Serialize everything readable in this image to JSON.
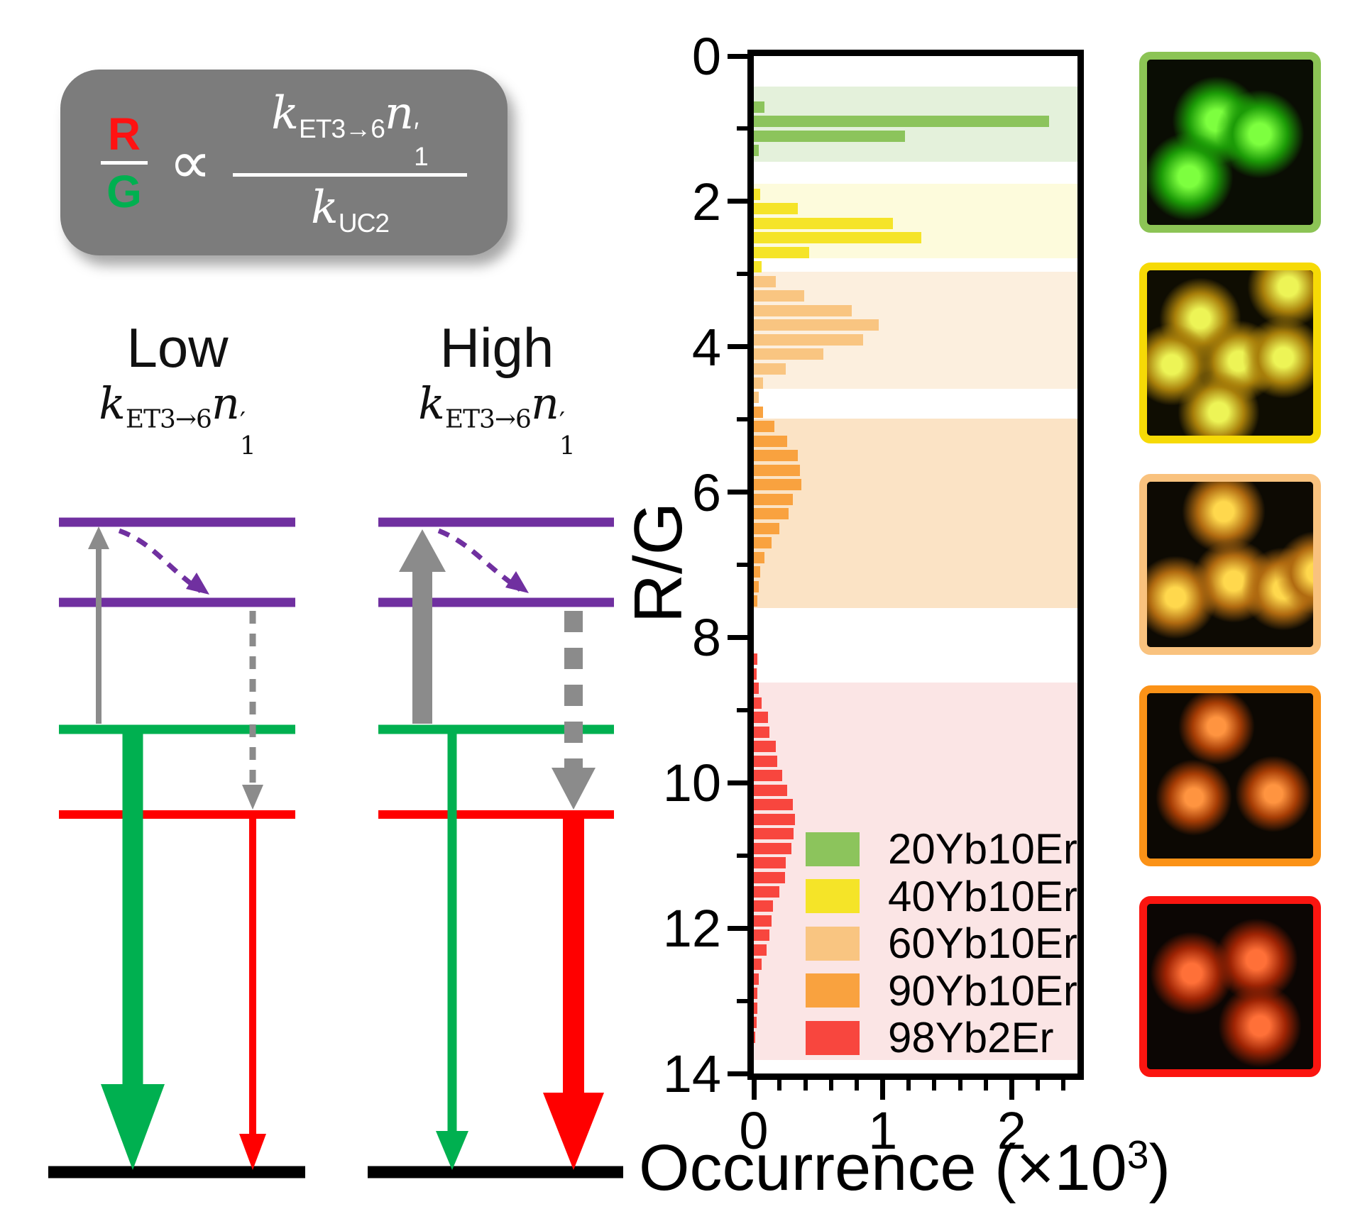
{
  "figure": {
    "formula_box": {
      "numerator": "R",
      "denominator": "G",
      "relation": "∝",
      "rate_k": "k",
      "rate_k_sub": "ET3→6",
      "rate_n": "n",
      "rate_n_prime": "′",
      "rate_n_sub": "1",
      "uc_k": "k",
      "uc_k_sub": "UC2",
      "bg_color": "#7C7C7C",
      "r_color": "#FF1212",
      "g_color": "#00B050"
    },
    "diagrams": {
      "low": {
        "title": "Low"
      },
      "high": {
        "title": "High"
      },
      "rate_label": {
        "k": "k",
        "k_sub": "ET3→6",
        "n": "n",
        "prime": "′",
        "n_sub": "1"
      },
      "level_colors": {
        "excited_purple": "#7030A0",
        "green_level": "#00B050",
        "red_level": "#FF0000",
        "ground": "#000000",
        "pump_gray": "#8B8B8B"
      }
    }
  },
  "chart_data": {
    "type": "bar",
    "orientation": "horizontal",
    "title": "",
    "ylabel": "R/G",
    "xlabel_prefix": "Occurrence (×10",
    "xlabel_sup": "3",
    "xlabel_suffix": ")",
    "xlim": [
      0,
      2.51
    ],
    "ylim": [
      0,
      14
    ],
    "y_inverted": true,
    "x_ticks": [
      0,
      1,
      2
    ],
    "x_minor_ticks": [
      0.2,
      0.4,
      0.6,
      0.8,
      1.2,
      1.4,
      1.6,
      1.8,
      2.2,
      2.4
    ],
    "y_ticks": [
      0,
      2,
      4,
      6,
      8,
      10,
      12,
      14
    ],
    "y_minor_ticks": [
      1,
      3,
      5,
      7,
      9,
      11,
      13
    ],
    "grid": false,
    "bin_width": 0.2,
    "legend_position": "inside-bottom-right",
    "series": [
      {
        "name": "20Yb10Er",
        "color": "#8CC45C",
        "band_color": "#E4F1DB",
        "band_range": [
          0.42,
          1.45
        ],
        "bins": [
          0.7,
          0.9,
          1.1,
          1.3
        ],
        "values": [
          0.08,
          2.29,
          1.17,
          0.04
        ]
      },
      {
        "name": "40Yb10Er",
        "color": "#F5E428",
        "band_color": "#FDFBDC",
        "band_range": [
          1.76,
          2.78
        ],
        "bins": [
          1.9,
          2.1,
          2.3,
          2.5,
          2.7,
          2.9
        ],
        "values": [
          0.05,
          0.34,
          1.08,
          1.3,
          0.43,
          0.06
        ]
      },
      {
        "name": "60Yb10Er",
        "color": "#F9C581",
        "band_color": "#FCEFDE",
        "band_range": [
          2.97,
          4.58
        ],
        "bins": [
          3.1,
          3.3,
          3.5,
          3.7,
          3.9,
          4.1,
          4.3,
          4.5,
          4.7
        ],
        "values": [
          0.17,
          0.39,
          0.76,
          0.97,
          0.85,
          0.54,
          0.25,
          0.07,
          0.04
        ]
      },
      {
        "name": "90Yb10Er",
        "color": "#F9A23F",
        "band_color": "#FBE3C5",
        "band_range": [
          4.99,
          7.6
        ],
        "bins": [
          4.9,
          5.1,
          5.3,
          5.5,
          5.7,
          5.9,
          6.1,
          6.3,
          6.5,
          6.7,
          6.9,
          7.1,
          7.3,
          7.5
        ],
        "values": [
          0.07,
          0.16,
          0.26,
          0.34,
          0.36,
          0.37,
          0.3,
          0.27,
          0.2,
          0.14,
          0.08,
          0.05,
          0.04,
          0.03
        ]
      },
      {
        "name": "98Yb2Er",
        "color": "#F8463E",
        "band_color": "#FBE5E5",
        "band_range": [
          8.62,
          13.81
        ],
        "bins": [
          8.3,
          8.5,
          8.7,
          8.9,
          9.1,
          9.3,
          9.5,
          9.7,
          9.9,
          10.1,
          10.3,
          10.5,
          10.7,
          10.9,
          11.1,
          11.3,
          11.5,
          11.7,
          11.9,
          12.1,
          12.3,
          12.5,
          12.7,
          12.9,
          13.1,
          13.3,
          13.5
        ],
        "values": [
          0.03,
          0.02,
          0.04,
          0.06,
          0.11,
          0.12,
          0.17,
          0.18,
          0.22,
          0.26,
          0.3,
          0.32,
          0.31,
          0.29,
          0.25,
          0.24,
          0.2,
          0.15,
          0.14,
          0.12,
          0.1,
          0.06,
          0.04,
          0.03,
          0.03,
          0.02,
          0.01
        ]
      }
    ]
  },
  "panels": [
    {
      "name": "20Yb10Er",
      "border_color": "#8CC455",
      "bg": "#0A0D04",
      "dot_core": "#7DFF3F",
      "dot_glow": "#1C9B07",
      "dot_size": 130,
      "dots": [
        [
          0.42,
          0.37
        ],
        [
          0.68,
          0.45
        ],
        [
          0.25,
          0.71
        ]
      ]
    },
    {
      "name": "40Yb10Er",
      "border_color": "#F6DA06",
      "bg": "#0F0D02",
      "dot_core": "#EDF456",
      "dot_glow": "#A87F0A",
      "dot_size": 120,
      "dots": [
        [
          0.85,
          0.1
        ],
        [
          0.32,
          0.29
        ],
        [
          0.15,
          0.57
        ],
        [
          0.55,
          0.55
        ],
        [
          0.82,
          0.53
        ],
        [
          0.43,
          0.86
        ]
      ]
    },
    {
      "name": "60Yb10Er",
      "border_color": "#F9C27E",
      "bg": "#0D0A03",
      "dot_core": "#FFD84D",
      "dot_glow": "#B06A10",
      "dot_size": 122,
      "dots": [
        [
          0.46,
          0.18
        ],
        [
          0.52,
          0.6
        ],
        [
          0.17,
          0.7
        ],
        [
          0.82,
          0.65
        ],
        [
          1.02,
          0.55
        ]
      ]
    },
    {
      "name": "90Yb10Er",
      "border_color": "#FB9217",
      "bg": "#0C0803",
      "dot_core": "#FF9440",
      "dot_glow": "#A63D05",
      "dot_size": 112,
      "dots": [
        [
          0.42,
          0.2
        ],
        [
          0.28,
          0.63
        ],
        [
          0.76,
          0.61
        ]
      ]
    },
    {
      "name": "98Yb2Er",
      "border_color": "#FB1510",
      "bg": "#0C0604",
      "dot_core": "#FF7038",
      "dot_glow": "#9E2404",
      "dot_size": 122,
      "dots": [
        [
          0.27,
          0.42
        ],
        [
          0.66,
          0.34
        ],
        [
          0.68,
          0.74
        ]
      ]
    }
  ]
}
